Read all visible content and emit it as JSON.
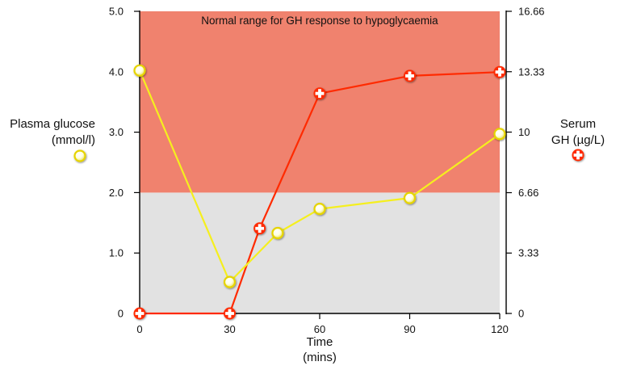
{
  "chart_data": {
    "type": "line",
    "annotation": "Normal range for GH response to hypoglycaemia",
    "xlabel_line1": "Time",
    "xlabel_line2": "(mins)",
    "ylabel_left_line1": "Plasma glucose",
    "ylabel_left_line2": "(mmol/l)",
    "ylabel_right_line1": "Serum",
    "ylabel_right_line2": "GH (µg/L)",
    "x_ticks": [
      "0",
      "30",
      "60",
      "90",
      "120"
    ],
    "xlim": [
      0,
      120
    ],
    "y_left_ticks": [
      "0",
      "1.0",
      "2.0",
      "3.0",
      "4.0",
      "5.0"
    ],
    "ylim_left": [
      0,
      5
    ],
    "y_right_ticks": [
      "0",
      "3.33",
      "6.66",
      "10",
      "13.33",
      "16.66"
    ],
    "ylim_right": [
      0,
      16.66
    ],
    "normal_range_left": [
      2.0,
      5.0
    ],
    "grid": false,
    "series": [
      {
        "name": "Plasma glucose",
        "axis": "left",
        "color": "#f5ef1e",
        "marker": "circle",
        "points": [
          [
            0,
            4.02
          ],
          [
            30,
            0.52
          ],
          [
            46,
            1.33
          ],
          [
            60,
            1.73
          ],
          [
            90,
            1.91
          ],
          [
            120,
            2.97
          ]
        ]
      },
      {
        "name": "Serum GH",
        "axis": "right",
        "color": "#ff2a00",
        "marker": "plus",
        "points": [
          [
            0,
            0
          ],
          [
            30,
            0
          ],
          [
            40,
            4.69
          ],
          [
            60,
            12.13
          ],
          [
            90,
            13.1
          ],
          [
            120,
            13.31
          ]
        ]
      }
    ]
  }
}
